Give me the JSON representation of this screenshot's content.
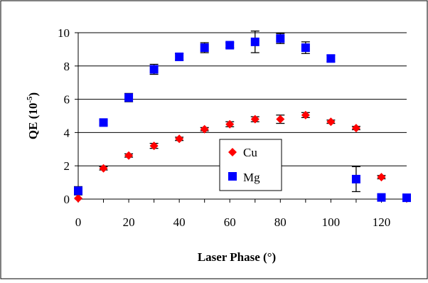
{
  "chart_data": {
    "type": "scatter",
    "title": "",
    "xlabel": "Laser Phase (°)",
    "ylabel_main": "QE (10",
    "ylabel_exp": "-5",
    "ylabel_close": ")",
    "xlim": [
      0,
      130
    ],
    "ylim": [
      0,
      10
    ],
    "x_ticks": [
      0,
      20,
      40,
      60,
      80,
      100,
      120
    ],
    "y_ticks": [
      0,
      2,
      4,
      6,
      8,
      10
    ],
    "grid": "horizontal",
    "legend_position": "center-right, inside plot",
    "series": [
      {
        "name": "Cu",
        "marker": "diamond",
        "color": "#ff0000",
        "points": [
          {
            "x": 0,
            "y": 0.05,
            "err": 0.0
          },
          {
            "x": 10,
            "y": 1.85,
            "err": 0.1
          },
          {
            "x": 20,
            "y": 2.62,
            "err": 0.1
          },
          {
            "x": 30,
            "y": 3.2,
            "err": 0.15
          },
          {
            "x": 40,
            "y": 3.62,
            "err": 0.1
          },
          {
            "x": 50,
            "y": 4.2,
            "err": 0.1
          },
          {
            "x": 60,
            "y": 4.5,
            "err": 0.15
          },
          {
            "x": 70,
            "y": 4.8,
            "err": 0.15
          },
          {
            "x": 80,
            "y": 4.8,
            "err": 0.25
          },
          {
            "x": 90,
            "y": 5.05,
            "err": 0.15
          },
          {
            "x": 100,
            "y": 4.65,
            "err": 0.1
          },
          {
            "x": 110,
            "y": 4.27,
            "err": 0.1
          },
          {
            "x": 120,
            "y": 1.32,
            "err": 0.1
          },
          {
            "x": 130,
            "y": 0.05,
            "err": 0.0
          }
        ]
      },
      {
        "name": "Mg",
        "marker": "square",
        "color": "#0000ff",
        "points": [
          {
            "x": 0,
            "y": 0.5,
            "err": 0.25
          },
          {
            "x": 10,
            "y": 4.6,
            "err": 0.15
          },
          {
            "x": 20,
            "y": 6.1,
            "err": 0.25
          },
          {
            "x": 30,
            "y": 7.8,
            "err": 0.3
          },
          {
            "x": 40,
            "y": 8.55,
            "err": 0.2
          },
          {
            "x": 50,
            "y": 9.1,
            "err": 0.3
          },
          {
            "x": 60,
            "y": 9.25,
            "err": 0.15
          },
          {
            "x": 70,
            "y": 9.45,
            "err": 0.65
          },
          {
            "x": 80,
            "y": 9.65,
            "err": 0.3
          },
          {
            "x": 90,
            "y": 9.1,
            "err": 0.35
          },
          {
            "x": 100,
            "y": 8.45,
            "err": 0.2
          },
          {
            "x": 110,
            "y": 1.2,
            "err": 0.75
          },
          {
            "x": 120,
            "y": 0.1,
            "err": 0.0
          },
          {
            "x": 130,
            "y": 0.08,
            "err": 0.0
          }
        ]
      }
    ]
  }
}
